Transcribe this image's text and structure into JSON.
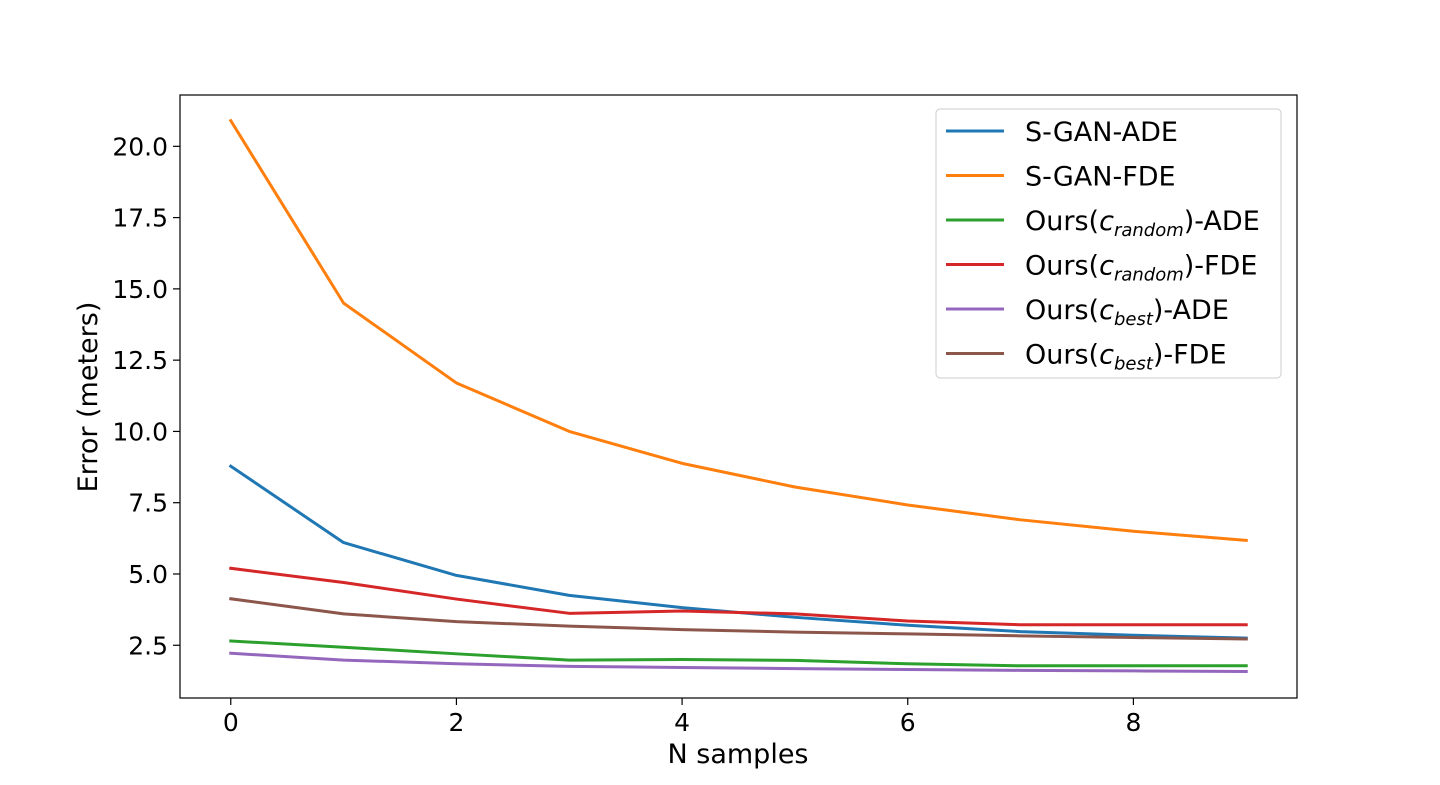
{
  "chart_data": {
    "type": "line",
    "title": "",
    "xlabel": "N samples",
    "ylabel": "Error (meters)",
    "x": [
      0,
      1,
      2,
      3,
      4,
      5,
      6,
      7,
      8,
      9
    ],
    "xlim": [
      -0.45,
      9.45
    ],
    "ylim": [
      0.65,
      21.8
    ],
    "xticks": [
      0,
      2,
      4,
      6,
      8
    ],
    "xtick_labels": [
      "0",
      "2",
      "4",
      "6",
      "8"
    ],
    "yticks": [
      2.5,
      5.0,
      7.5,
      10.0,
      12.5,
      15.0,
      17.5,
      20.0
    ],
    "ytick_labels": [
      "2.5",
      "5.0",
      "7.5",
      "10.0",
      "12.5",
      "15.0",
      "17.5",
      "20.0"
    ],
    "grid": false,
    "legend_position": "top-right",
    "series": [
      {
        "name": "S-GAN-ADE",
        "legend": {
          "prefix": "S-GAN-ADE",
          "math": "",
          "sub": "",
          "suffix": ""
        },
        "color": "#1f77b4",
        "values": [
          8.78,
          6.1,
          4.95,
          4.25,
          3.82,
          3.48,
          3.2,
          2.98,
          2.85,
          2.75
        ]
      },
      {
        "name": "S-GAN-FDE",
        "legend": {
          "prefix": "S-GAN-FDE",
          "math": "",
          "sub": "",
          "suffix": ""
        },
        "color": "#ff7f0e",
        "values": [
          20.9,
          14.5,
          11.7,
          10.0,
          8.88,
          8.05,
          7.42,
          6.9,
          6.5,
          6.18
        ]
      },
      {
        "name": "Ours(c_random)-ADE",
        "legend": {
          "prefix": "Ours(",
          "math": "c",
          "sub": "random",
          "suffix": ")-ADE"
        },
        "color": "#2ca02c",
        "values": [
          2.65,
          2.43,
          2.2,
          1.98,
          2.0,
          1.97,
          1.85,
          1.78,
          1.78,
          1.78
        ]
      },
      {
        "name": "Ours(c_random)-FDE",
        "legend": {
          "prefix": "Ours(",
          "math": "c",
          "sub": "random",
          "suffix": ")-FDE"
        },
        "color": "#d62728",
        "values": [
          5.2,
          4.7,
          4.12,
          3.62,
          3.7,
          3.6,
          3.35,
          3.22,
          3.22,
          3.22
        ]
      },
      {
        "name": "Ours(c_best)-ADE",
        "legend": {
          "prefix": "Ours(",
          "math": "c",
          "sub": "best",
          "suffix": ")-ADE"
        },
        "color": "#9467bd",
        "values": [
          2.22,
          1.98,
          1.85,
          1.76,
          1.72,
          1.68,
          1.65,
          1.62,
          1.6,
          1.58
        ]
      },
      {
        "name": "Ours(c_best)-FDE",
        "legend": {
          "prefix": "Ours(",
          "math": "c",
          "sub": "best",
          "suffix": ")-FDE"
        },
        "color": "#8c564b",
        "values": [
          4.13,
          3.6,
          3.33,
          3.17,
          3.05,
          2.96,
          2.9,
          2.83,
          2.77,
          2.72
        ]
      }
    ]
  }
}
